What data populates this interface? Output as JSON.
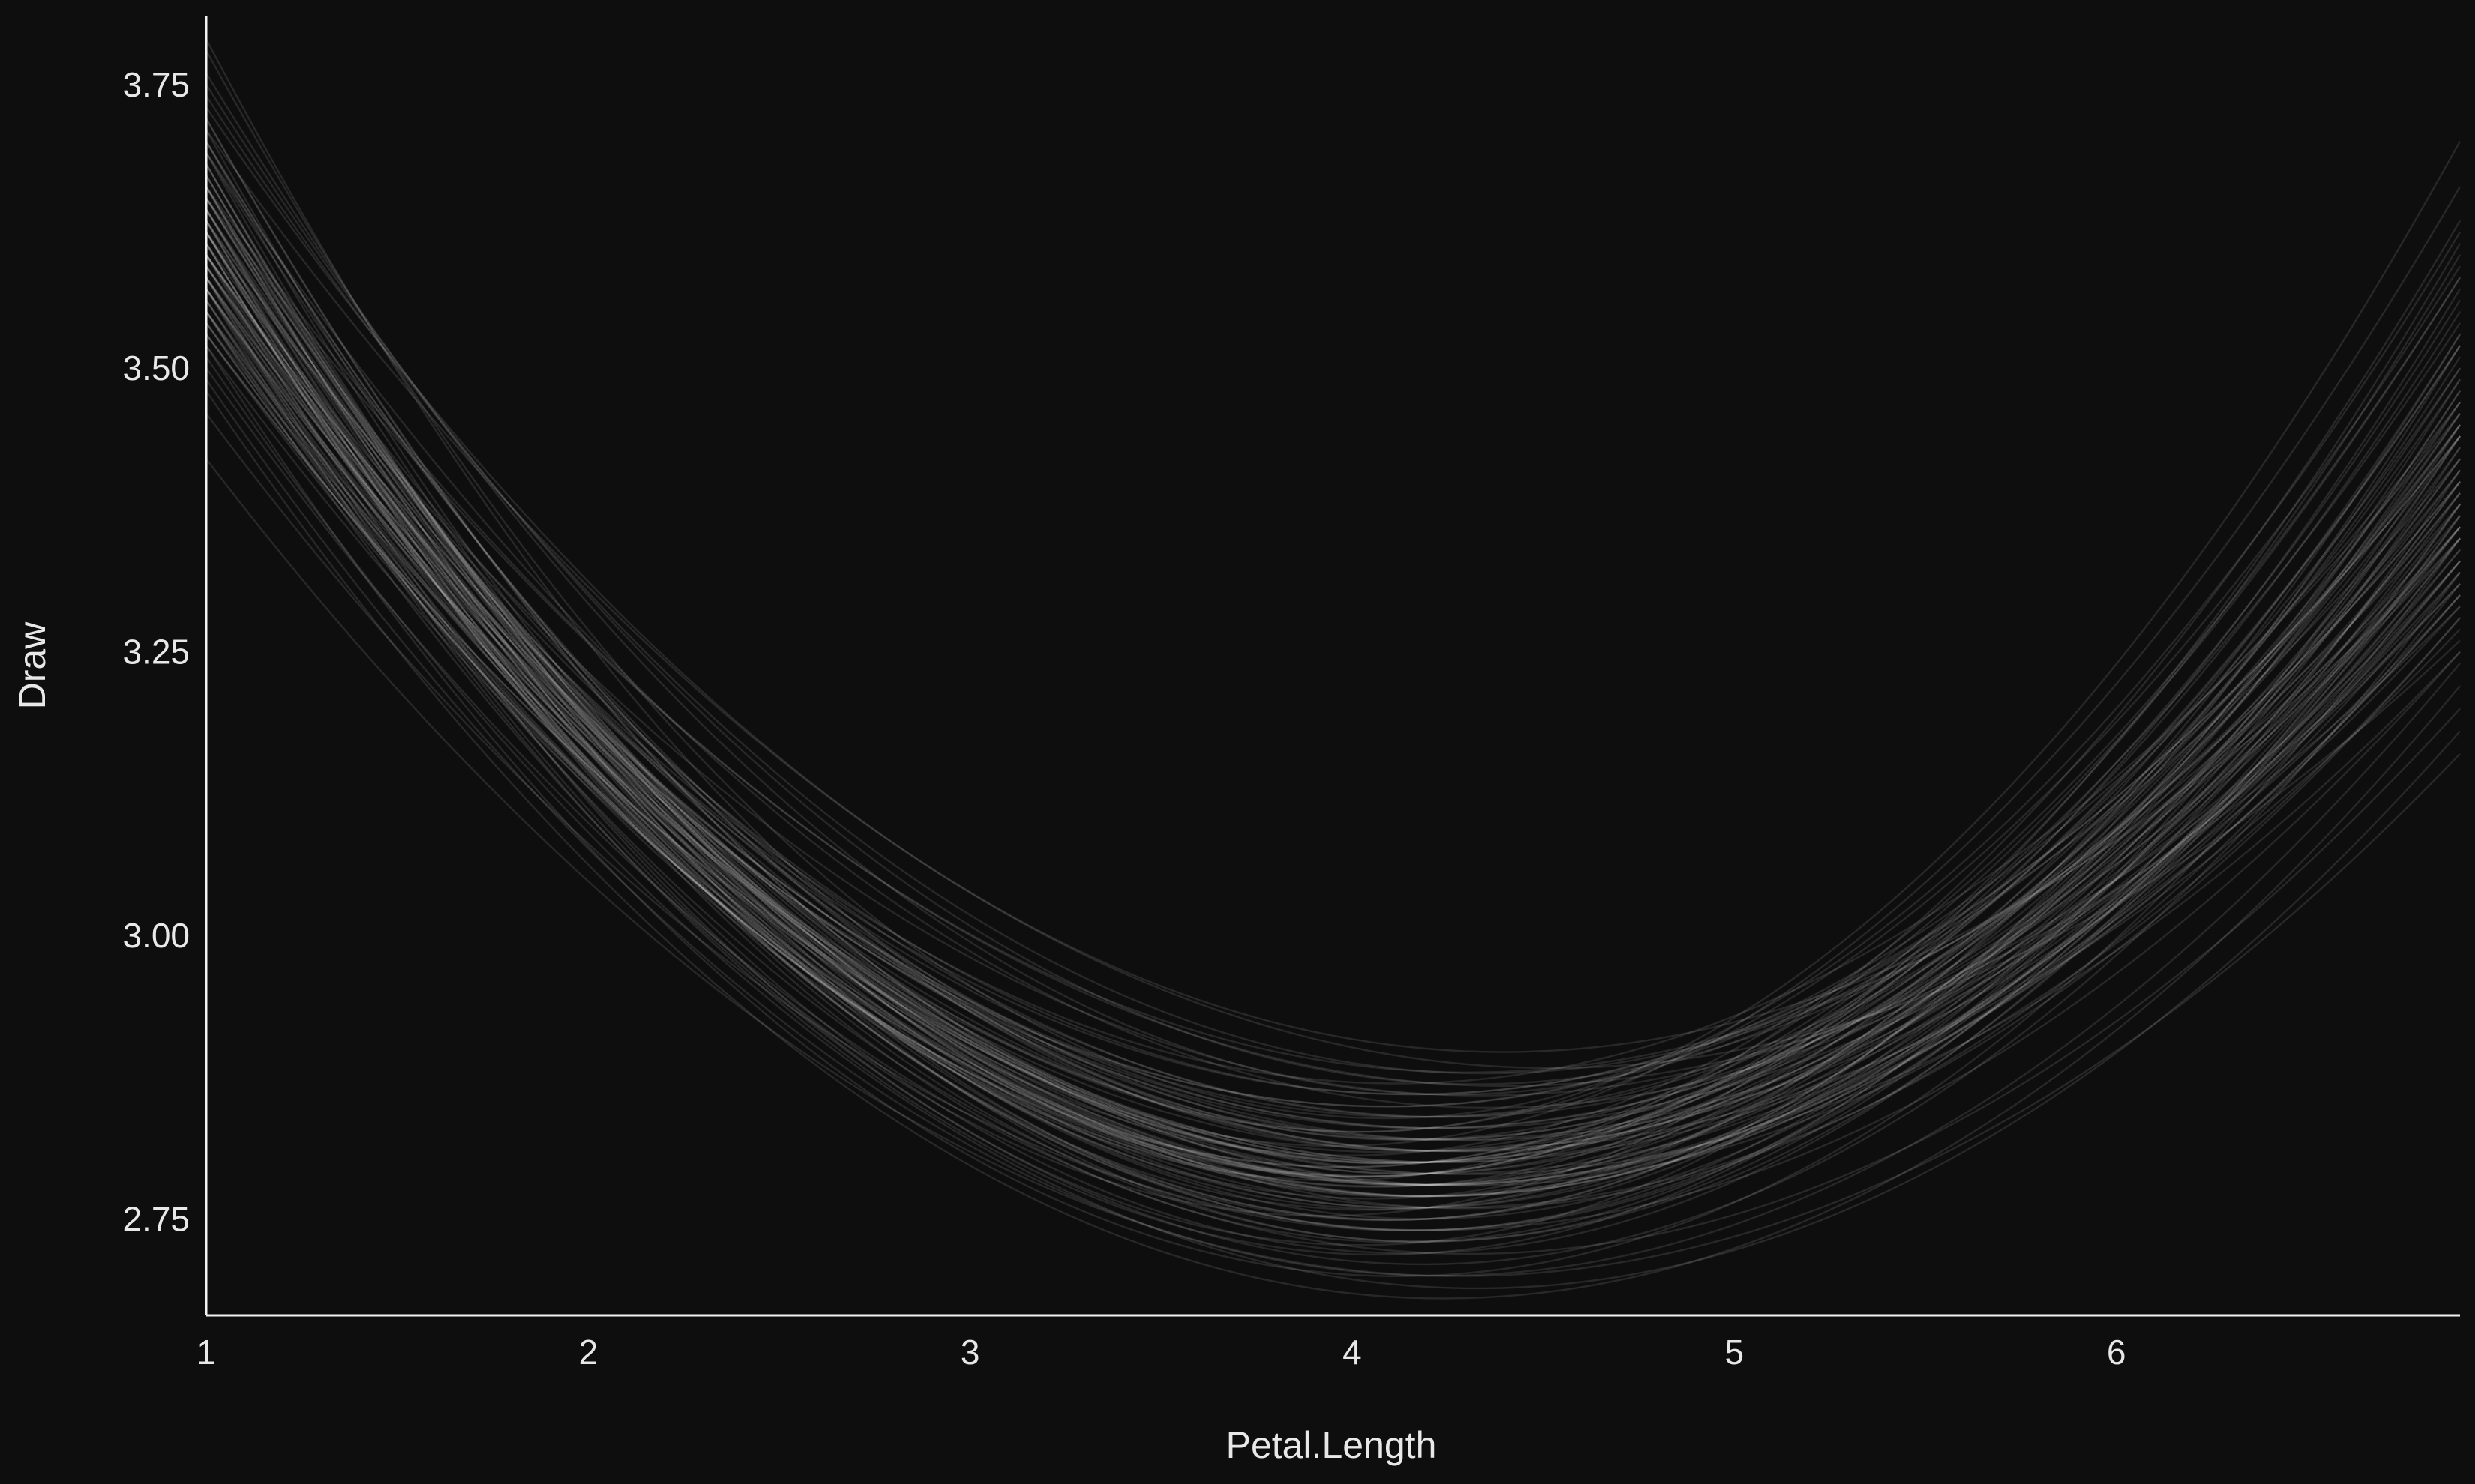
{
  "chart_data": {
    "type": "line",
    "title": "",
    "xlabel": "Petal.Length",
    "ylabel": "Draw",
    "xlim": [
      1,
      6.9
    ],
    "ylim": [
      2.665,
      3.81
    ],
    "x_ticks": [
      {
        "value": 1,
        "label": "1"
      },
      {
        "value": 2,
        "label": "2"
      },
      {
        "value": 3,
        "label": "3"
      },
      {
        "value": 4,
        "label": "4"
      },
      {
        "value": 5,
        "label": "5"
      },
      {
        "value": 6,
        "label": "6"
      }
    ],
    "y_ticks": [
      {
        "value": 2.75,
        "label": "2.75"
      },
      {
        "value": 3.0,
        "label": "3.00"
      },
      {
        "value": 3.25,
        "label": "3.25"
      },
      {
        "value": 3.5,
        "label": "3.50"
      },
      {
        "value": 3.75,
        "label": "3.75"
      }
    ],
    "grid": false,
    "legend": "none",
    "line_color": "#ffffff",
    "background": "#0e0e0e",
    "series_description": "Many posterior draws of a quadratic curve; each draw listed by its y-values at x = 1, 4.2 and 6.9",
    "draws": [
      [
        3.62,
        2.79,
        3.42
      ],
      [
        3.58,
        2.78,
        3.38
      ],
      [
        3.66,
        2.8,
        3.45
      ],
      [
        3.55,
        2.77,
        3.35
      ],
      [
        3.7,
        2.82,
        3.5
      ],
      [
        3.6,
        2.76,
        3.4
      ],
      [
        3.64,
        2.81,
        3.36
      ],
      [
        3.52,
        2.78,
        3.3
      ],
      [
        3.68,
        2.77,
        3.48
      ],
      [
        3.57,
        2.8,
        3.33
      ],
      [
        3.61,
        2.75,
        3.44
      ],
      [
        3.63,
        2.83,
        3.39
      ],
      [
        3.59,
        2.79,
        3.52
      ],
      [
        3.54,
        2.76,
        3.28
      ],
      [
        3.67,
        2.78,
        3.46
      ],
      [
        3.65,
        2.84,
        3.41
      ],
      [
        3.56,
        2.74,
        3.37
      ],
      [
        3.72,
        2.8,
        3.55
      ],
      [
        3.58,
        2.82,
        3.32
      ],
      [
        3.62,
        2.73,
        3.43
      ],
      [
        3.6,
        2.85,
        3.47
      ],
      [
        3.53,
        2.79,
        3.25
      ],
      [
        3.69,
        2.76,
        3.53
      ],
      [
        3.57,
        2.81,
        3.36
      ],
      [
        3.64,
        2.77,
        3.4
      ],
      [
        3.61,
        2.8,
        3.58
      ],
      [
        3.55,
        2.83,
        3.31
      ],
      [
        3.66,
        2.75,
        3.49
      ],
      [
        3.59,
        2.78,
        3.34
      ],
      [
        3.63,
        2.86,
        3.44
      ],
      [
        3.58,
        2.72,
        3.38
      ],
      [
        3.71,
        2.79,
        3.6
      ],
      [
        3.54,
        2.81,
        3.27
      ],
      [
        3.65,
        2.78,
        3.42
      ],
      [
        3.6,
        2.84,
        3.35
      ],
      [
        3.62,
        2.76,
        3.51
      ],
      [
        3.56,
        2.8,
        3.39
      ],
      [
        3.68,
        2.74,
        3.45
      ],
      [
        3.59,
        2.82,
        3.3
      ],
      [
        3.64,
        2.79,
        3.56
      ],
      [
        3.57,
        2.77,
        3.33
      ],
      [
        3.61,
        2.87,
        3.46
      ],
      [
        3.66,
        2.73,
        3.41
      ],
      [
        3.53,
        2.8,
        3.29
      ],
      [
        3.7,
        2.78,
        3.57
      ],
      [
        3.58,
        2.83,
        3.37
      ],
      [
        3.63,
        2.75,
        3.48
      ],
      [
        3.6,
        2.81,
        3.34
      ],
      [
        3.55,
        2.78,
        3.43
      ],
      [
        3.67,
        2.8,
        3.52
      ],
      [
        3.62,
        2.77,
        3.36
      ],
      [
        3.59,
        2.84,
        3.4
      ],
      [
        3.64,
        2.76,
        3.31
      ],
      [
        3.56,
        2.79,
        3.47
      ],
      [
        3.69,
        2.82,
        3.44
      ],
      [
        3.61,
        2.74,
        3.38
      ],
      [
        3.57,
        2.8,
        3.54
      ],
      [
        3.65,
        2.78,
        3.35
      ],
      [
        3.6,
        2.86,
        3.42
      ],
      [
        3.54,
        2.77,
        3.32
      ],
      [
        3.72,
        2.79,
        3.5
      ],
      [
        3.58,
        2.81,
        3.45
      ],
      [
        3.63,
        2.75,
        3.39
      ],
      [
        3.66,
        2.83,
        3.59
      ],
      [
        3.59,
        2.78,
        3.28
      ],
      [
        3.62,
        2.8,
        3.41
      ],
      [
        3.55,
        2.82,
        3.36
      ],
      [
        3.68,
        2.76,
        3.47
      ],
      [
        3.6,
        2.79,
        3.33
      ],
      [
        3.64,
        2.77,
        3.53
      ],
      [
        3.57,
        2.85,
        3.44
      ],
      [
        3.61,
        2.73,
        3.37
      ],
      [
        3.65,
        2.8,
        3.49
      ],
      [
        3.53,
        2.78,
        3.3
      ],
      [
        3.7,
        2.81,
        3.46
      ],
      [
        3.42,
        2.7,
        3.16
      ],
      [
        3.48,
        2.68,
        3.22
      ],
      [
        3.5,
        2.72,
        3.2
      ],
      [
        3.46,
        2.74,
        3.25
      ],
      [
        3.51,
        2.69,
        3.18
      ],
      [
        3.74,
        2.88,
        3.38
      ],
      [
        3.76,
        2.86,
        3.45
      ],
      [
        3.73,
        2.9,
        3.35
      ],
      [
        3.78,
        2.84,
        3.62
      ],
      [
        3.75,
        2.87,
        3.4
      ],
      [
        3.79,
        2.83,
        3.7
      ],
      [
        3.67,
        2.82,
        3.66
      ],
      [
        3.63,
        2.79,
        3.63
      ],
      [
        3.58,
        2.76,
        3.61
      ],
      [
        3.62,
        2.81,
        3.58
      ],
      [
        3.49,
        2.7,
        3.24
      ],
      [
        3.55,
        2.71,
        3.32
      ],
      [
        3.6,
        2.73,
        3.52
      ],
      [
        3.57,
        2.72,
        3.44
      ],
      [
        3.52,
        2.7,
        3.35
      ],
      [
        3.65,
        2.87,
        3.29
      ],
      [
        3.69,
        2.85,
        3.33
      ],
      [
        3.71,
        2.89,
        3.26
      ],
      [
        3.62,
        2.86,
        3.31
      ],
      [
        3.66,
        2.88,
        3.36
      ]
    ]
  }
}
